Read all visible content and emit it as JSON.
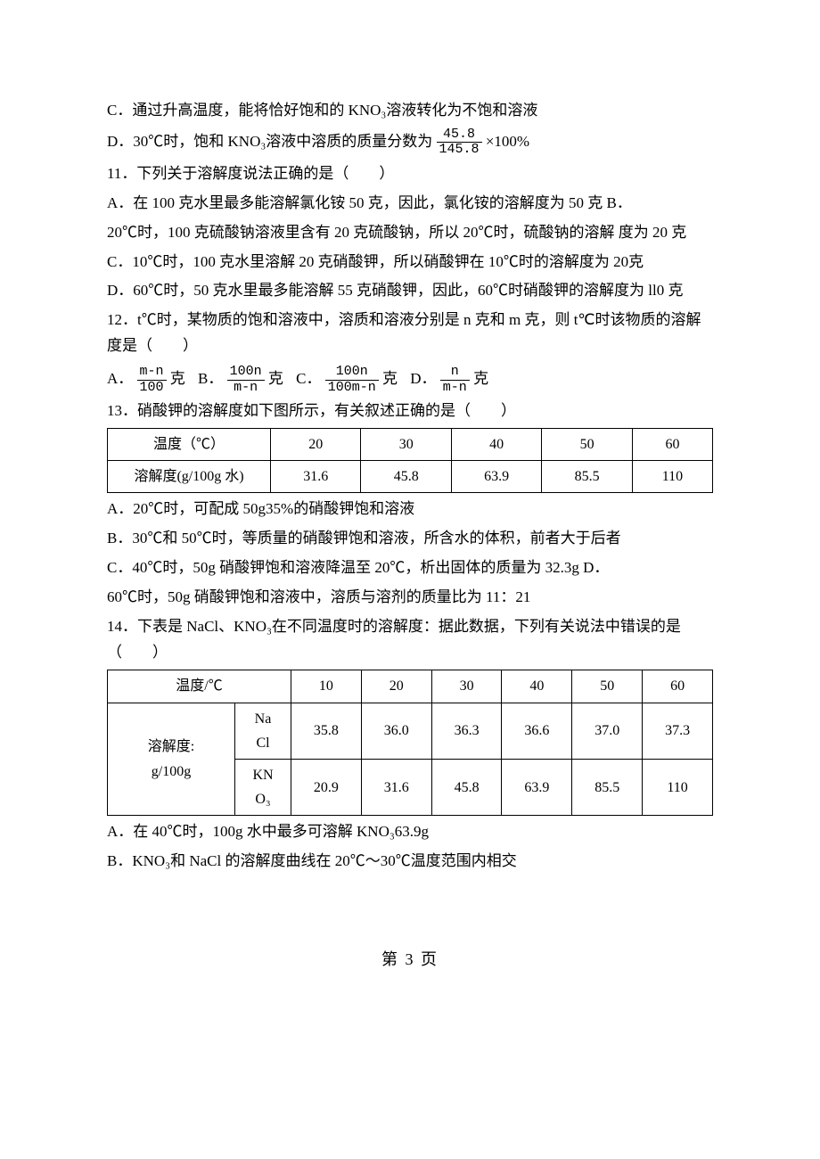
{
  "q10": {
    "C": "C．通过升高温度，能将恰好饱和的 KNO₃溶液转化为不饱和溶液",
    "D_pre": "D．30℃时，饱和 KNO₃溶液中溶质的质量分数为",
    "D_frac_num": "45.8",
    "D_frac_den": "145.8",
    "D_post": "×100%"
  },
  "q11": {
    "stem": "11．下列关于溶解度说法正确的是（　　）",
    "A": "A．在 100 克水里最多能溶解氯化铵 50 克，因此，氯化铵的溶解度为 50 克  B．",
    "B": "20℃时，100 克硫酸钠溶液里含有 20 克硫酸钠，所以 20℃时，硫酸钠的溶解  度为 20 克",
    "C": "C．10℃时，100 克水里溶解 20 克硝酸钾，所以硝酸钾在 10℃时的溶解度为 20克",
    "D": "D．60℃时，50 克水里最多能溶解 55 克硝酸钾，因此，60℃时硝酸钾的溶解度为 ll0 克"
  },
  "q12": {
    "stem": "12．t℃时，某物质的饱和溶液中，溶质和溶液分别是  n 克和 m 克，则 t℃时该物质的溶解度是（　　）",
    "optA_num": "m-n",
    "optA_den": "100",
    "optA_suffix": "克",
    "optB_num": "100n",
    "optB_den": "m-n",
    "optB_suffix": "克",
    "optC_num": "100n",
    "optC_den": "100m-n",
    "optC_suffix": "克",
    "optD_num": "n",
    "optD_den": "m-n",
    "optD_suffix": "克",
    "A": "A．",
    "B": "B．",
    "C": "C．",
    "D": "D．"
  },
  "q13": {
    "stem": "13．硝酸钾的溶解度如下图所示，有关叙述正确的是（　　）",
    "table": {
      "row1": [
        "温度（℃）",
        "20",
        "30",
        "40",
        "50",
        "60"
      ],
      "row2": [
        "溶解度(g/100g 水)",
        "31.6",
        "45.8",
        "63.9",
        "85.5",
        "110"
      ]
    },
    "A": "A．20℃时，可配成 50g35%的硝酸钾饱和溶液",
    "B": "B．30℃和 50℃时，等质量的硝酸钾饱和溶液，所含水的体积，前者大于后者",
    "C": "C．40℃时，50g 硝酸钾饱和溶液降温至 20℃，析出固体的质量为 32.3g D．",
    "D": "60℃时，50g 硝酸钾饱和溶液中，溶质与溶剂的质量比为 11：21"
  },
  "q14": {
    "stem": "14．下表是 NaCl、KNO₃在不同温度时的溶解度：据此数据，下列有关说法中错误的是（　　）",
    "headerRow": [
      "温度/℃",
      "",
      "10",
      "20",
      "30",
      "40",
      "50",
      "60"
    ],
    "solLabel1": "溶解度:",
    "solLabel2": "g/100g",
    "sub1a": "Na",
    "sub1b": "Cl",
    "sub2a": "KN",
    "sub2b": "O₃",
    "row1": [
      "35.8",
      "36.0",
      "36.3",
      "36.6",
      "37.0",
      "37.3"
    ],
    "row2": [
      "20.9",
      "31.6",
      "45.8",
      "63.9",
      "85.5",
      "110"
    ],
    "A": "A．在 40℃时，100g 水中最多可溶解 KNO₃63.9g",
    "B": "B．KNO₃和 NaCl 的溶解度曲线在 20℃～30℃温度范围内相交"
  },
  "footer": "第 3 页"
}
